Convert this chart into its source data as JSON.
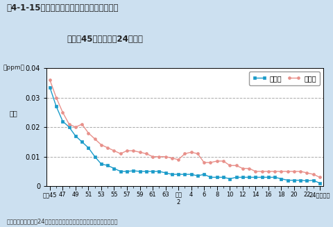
{
  "title_line1": "围4-1-15　二酸化硫黄濃度の年平均値の推移",
  "title_line2": "（昭和45年度～平成24年度）",
  "ylabel_unit": "（ppm）",
  "ylabel_text": "濃度",
  "caption": "資料：環境省「平成24年度大気汚染状況について（報道発表資料）」",
  "legend_general": "一般局",
  "legend_road": "自排局",
  "ylim": [
    0,
    0.04
  ],
  "yticks": [
    0,
    0.01,
    0.02,
    0.03,
    0.04
  ],
  "bg_color": "#cce0f0",
  "plot_bg_color": "#ffffff",
  "general_color": "#1a9bc9",
  "road_color": "#e8908a",
  "general_values": [
    0.0335,
    0.027,
    0.022,
    0.02,
    0.017,
    0.015,
    0.013,
    0.01,
    0.0075,
    0.007,
    0.006,
    0.005,
    0.005,
    0.0052,
    0.005,
    0.005,
    0.005,
    0.005,
    0.0045,
    0.004,
    0.004,
    0.004,
    0.004,
    0.0035,
    0.004,
    0.003,
    0.003,
    0.003,
    0.0025,
    0.003,
    0.003,
    0.003,
    0.003,
    0.003,
    0.003,
    0.003,
    0.0025,
    0.002,
    0.002,
    0.002,
    0.0018,
    0.002,
    0.001
  ],
  "road_values": [
    0.036,
    0.03,
    0.025,
    0.021,
    0.02,
    0.021,
    0.018,
    0.016,
    0.014,
    0.013,
    0.012,
    0.011,
    0.012,
    0.012,
    0.0115,
    0.011,
    0.01,
    0.01,
    0.01,
    0.0095,
    0.009,
    0.011,
    0.0115,
    0.011,
    0.008,
    0.008,
    0.0085,
    0.0085,
    0.007,
    0.007,
    0.006,
    0.006,
    0.005,
    0.005,
    0.005,
    0.005,
    0.005,
    0.005,
    0.005,
    0.005,
    0.0045,
    0.004,
    0.003
  ]
}
